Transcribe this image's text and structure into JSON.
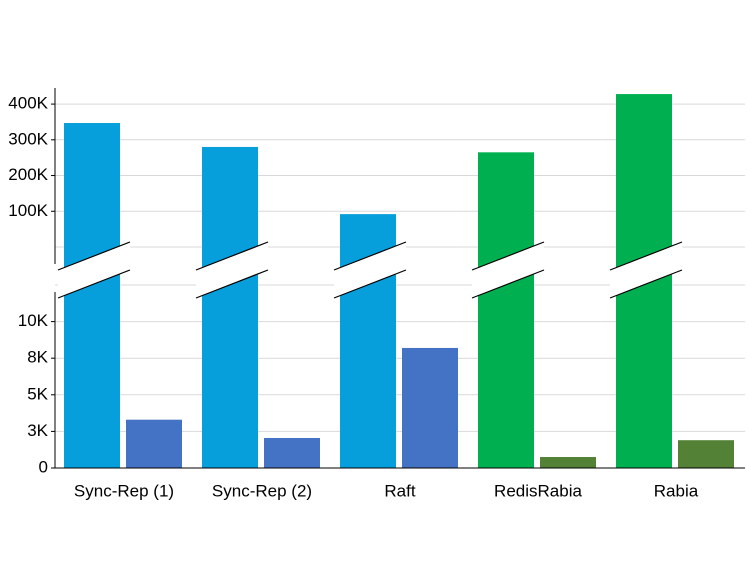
{
  "chart_data": {
    "type": "broken-bar",
    "categories": [
      "Sync-Rep (1)",
      "Sync-Rep (2)",
      "Raft",
      "RedisRabia",
      "Rabia"
    ],
    "series": [
      {
        "axis": "upper",
        "colors": [
          "#069fdb",
          "#069fdb",
          "#069fdb",
          "#00b050",
          "#00b050"
        ],
        "values": [
          347000,
          280000,
          92000,
          265000,
          428000
        ]
      },
      {
        "axis": "lower",
        "colors": [
          "#4472c4",
          "#4472c4",
          "#4472c4",
          "#538135",
          "#538135"
        ],
        "values": [
          3300,
          2050,
          8200,
          750,
          1900
        ]
      }
    ],
    "ylim": [
      0,
      12500
    ],
    "yticks": [
      0,
      {
        "value": 2500,
        "label": "3K"
      },
      {
        "value": 5000,
        "label": "5K"
      },
      {
        "value": 7500,
        "label": "8K"
      },
      {
        "value": 10000,
        "label": "10K"
      }
    ],
    "y2lim": [
      0,
      445000
    ],
    "y2ticks": [
      {
        "value": 100000,
        "label": "100K"
      },
      {
        "value": 200000,
        "label": "200K"
      },
      {
        "value": 300000,
        "label": "300K"
      },
      {
        "value": 400000,
        "label": "400K"
      }
    ],
    "grid": true
  }
}
